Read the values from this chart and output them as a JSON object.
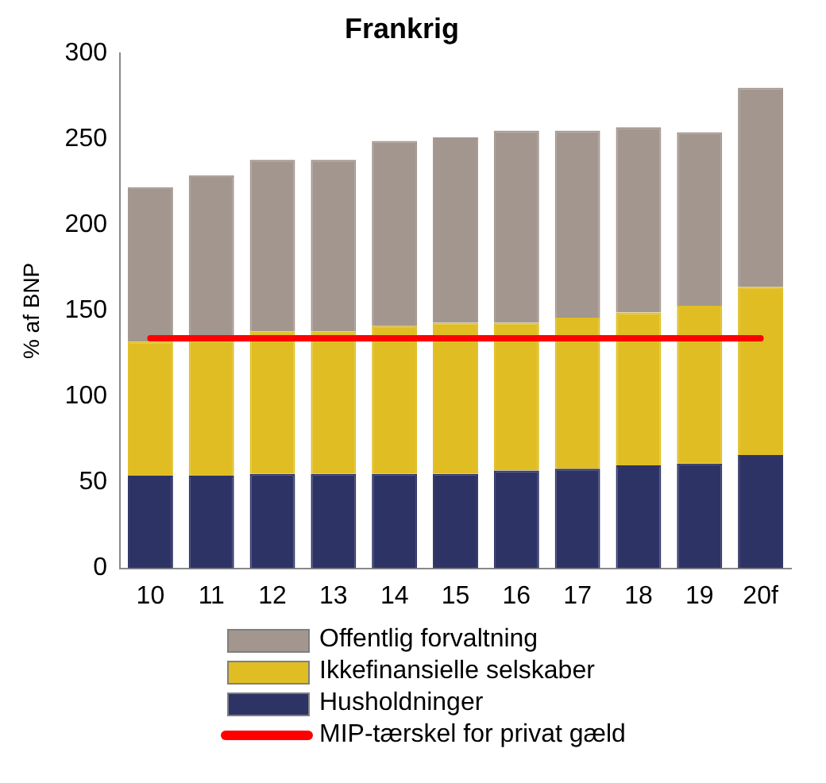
{
  "chart_data": {
    "type": "bar",
    "title": "Frankrig",
    "ylabel": "% af BNP",
    "stacked": true,
    "categories": [
      "10",
      "11",
      "12",
      "13",
      "14",
      "15",
      "16",
      "17",
      "18",
      "19",
      "20f"
    ],
    "series": [
      {
        "name": "Husholdninger",
        "color": "#2e3366",
        "values": [
          54,
          54,
          55,
          55,
          55,
          55,
          57,
          58,
          60,
          61,
          66
        ]
      },
      {
        "name": "Ikkefinansielle selskaber",
        "color": "#e0bd22",
        "values": [
          78,
          79,
          83,
          83,
          86,
          88,
          86,
          88,
          89,
          92,
          98
        ]
      },
      {
        "name": "Offentlig forvaltning",
        "color": "#a2968e",
        "values": [
          90,
          96,
          100,
          100,
          108,
          108,
          112,
          109,
          108,
          101,
          116
        ]
      }
    ],
    "ref_lines": [
      {
        "axis": "y",
        "value": 134,
        "label": "MIP-tærskel for privat gæld",
        "color": "#ff0000"
      }
    ],
    "ylim": [
      0,
      300
    ],
    "yticks": [
      0,
      50,
      100,
      150,
      200,
      250,
      300
    ],
    "grid": false,
    "legend": "bottom"
  }
}
